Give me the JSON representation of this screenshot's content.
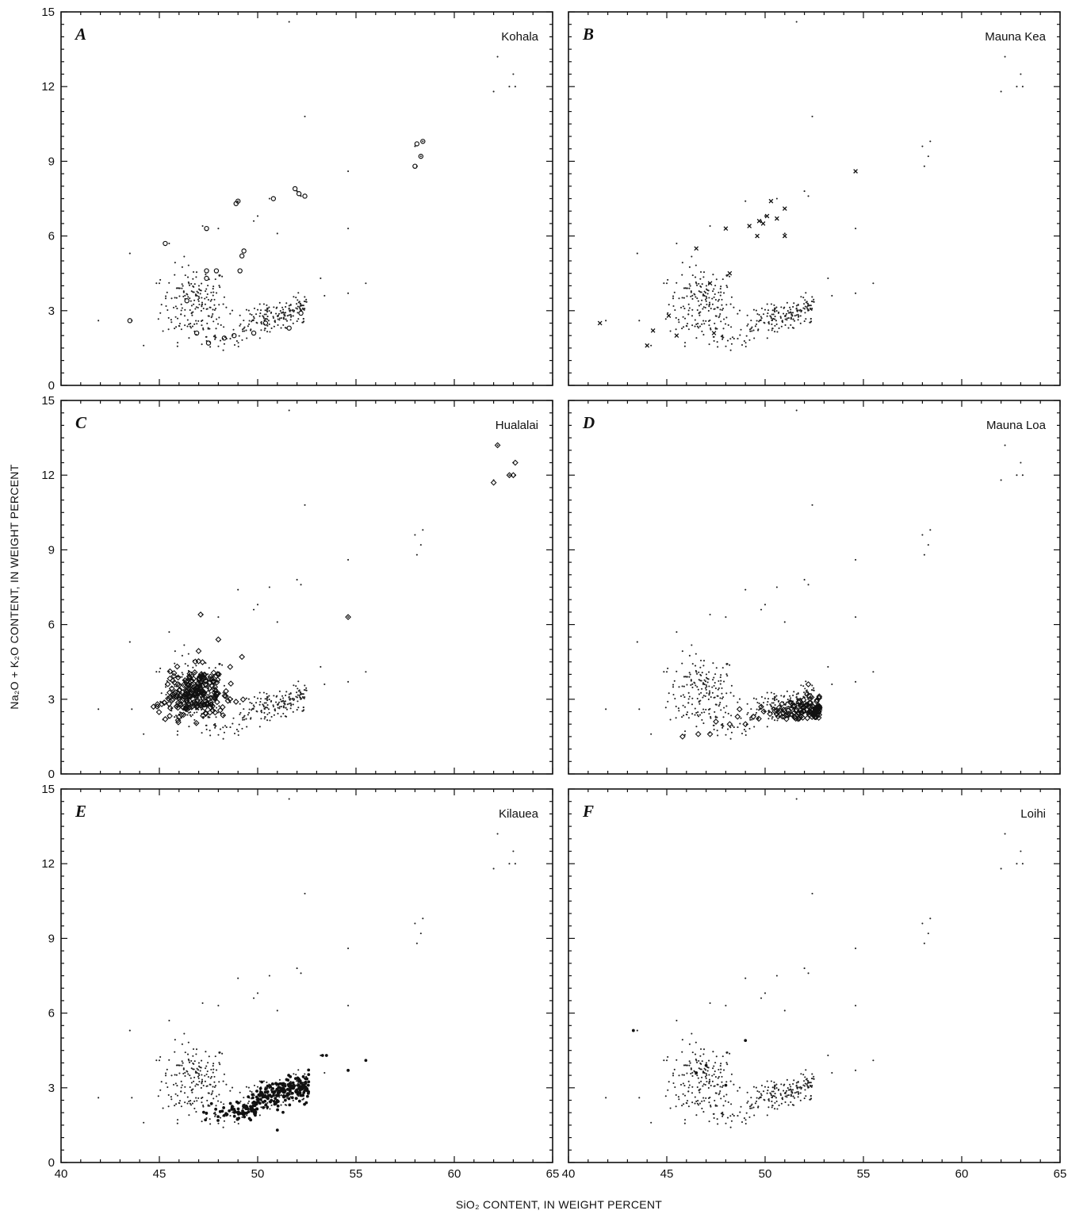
{
  "chart_data": {
    "type": "scatter",
    "xlabel": "SiO₂ CONTENT, IN WEIGHT PERCENT",
    "ylabel": "Na₂O + K₂O CONTENT, IN WEIGHT PERCENT",
    "xlim": [
      40,
      65
    ],
    "ylim": [
      0,
      15
    ],
    "x_ticks": [
      "40",
      "45",
      "50",
      "55",
      "60",
      "65"
    ],
    "y_ticks": [
      "0",
      "3",
      "6",
      "9",
      "12",
      "15"
    ],
    "grid": false,
    "background_field": {
      "description": "All Hawaiian volcano analyses shown as small dots in every panel",
      "clusters": [
        {
          "x_range": [
            44.5,
            49
          ],
          "y_range": [
            1.5,
            5.7
          ],
          "center": [
            46.8,
            3.3
          ]
        },
        {
          "x_range": [
            47,
            52.5
          ],
          "y_range": [
            1.3,
            3.9
          ],
          "center": [
            50.8,
            2.6
          ]
        }
      ],
      "trend_points": [
        {
          "x": 41.9,
          "y": 2.6
        },
        {
          "x": 43.5,
          "y": 5.3
        },
        {
          "x": 43.6,
          "y": 2.6
        },
        {
          "x": 44.2,
          "y": 1.6
        },
        {
          "x": 45.0,
          "y": 4.1
        },
        {
          "x": 45.5,
          "y": 5.7
        },
        {
          "x": 47.2,
          "y": 6.4
        },
        {
          "x": 48.0,
          "y": 6.3
        },
        {
          "x": 49.0,
          "y": 7.4
        },
        {
          "x": 49.8,
          "y": 6.6
        },
        {
          "x": 50.0,
          "y": 6.8
        },
        {
          "x": 50.6,
          "y": 7.5
        },
        {
          "x": 51.0,
          "y": 6.1
        },
        {
          "x": 51.6,
          "y": 14.6
        },
        {
          "x": 52.0,
          "y": 7.8
        },
        {
          "x": 52.4,
          "y": 10.8
        },
        {
          "x": 52.2,
          "y": 7.6
        },
        {
          "x": 53.2,
          "y": 4.3
        },
        {
          "x": 53.4,
          "y": 3.6
        },
        {
          "x": 54.6,
          "y": 8.6
        },
        {
          "x": 54.6,
          "y": 6.3
        },
        {
          "x": 54.6,
          "y": 3.7
        },
        {
          "x": 55.5,
          "y": 4.1
        },
        {
          "x": 58.0,
          "y": 9.6
        },
        {
          "x": 58.1,
          "y": 8.8
        },
        {
          "x": 58.3,
          "y": 9.2
        },
        {
          "x": 58.4,
          "y": 9.8
        },
        {
          "x": 62.0,
          "y": 11.8
        },
        {
          "x": 62.2,
          "y": 13.2
        },
        {
          "x": 62.8,
          "y": 12.0
        },
        {
          "x": 63.1,
          "y": 12.0
        },
        {
          "x": 63.0,
          "y": 12.5
        }
      ]
    },
    "panels": [
      {
        "letter": "A",
        "name": "Kohala",
        "marker": "circle",
        "highlight_points": [
          {
            "x": 43.5,
            "y": 2.6
          },
          {
            "x": 45.3,
            "y": 5.7
          },
          {
            "x": 46.4,
            "y": 3.4
          },
          {
            "x": 47.4,
            "y": 6.3
          },
          {
            "x": 47.4,
            "y": 4.6
          },
          {
            "x": 47.4,
            "y": 4.3
          },
          {
            "x": 47.9,
            "y": 4.6
          },
          {
            "x": 48.9,
            "y": 7.3
          },
          {
            "x": 49.0,
            "y": 7.4
          },
          {
            "x": 49.1,
            "y": 4.6
          },
          {
            "x": 49.2,
            "y": 5.2
          },
          {
            "x": 49.3,
            "y": 5.4
          },
          {
            "x": 50.8,
            "y": 7.5
          },
          {
            "x": 51.9,
            "y": 7.9
          },
          {
            "x": 52.1,
            "y": 7.7
          },
          {
            "x": 52.4,
            "y": 7.6
          },
          {
            "x": 58.0,
            "y": 8.8
          },
          {
            "x": 58.1,
            "y": 9.7
          },
          {
            "x": 58.3,
            "y": 9.2
          },
          {
            "x": 58.4,
            "y": 9.8
          },
          {
            "x": 47.5,
            "y": 1.7
          },
          {
            "x": 48.3,
            "y": 1.9
          },
          {
            "x": 48.8,
            "y": 2.0
          },
          {
            "x": 49.8,
            "y": 2.1
          },
          {
            "x": 50.4,
            "y": 2.5
          },
          {
            "x": 51.6,
            "y": 2.3
          },
          {
            "x": 52.2,
            "y": 2.9
          },
          {
            "x": 46.9,
            "y": 2.1
          }
        ]
      },
      {
        "letter": "B",
        "name": "Mauna Kea",
        "marker": "cross",
        "highlight_points": [
          {
            "x": 41.6,
            "y": 2.5
          },
          {
            "x": 44.0,
            "y": 1.6
          },
          {
            "x": 44.3,
            "y": 2.2
          },
          {
            "x": 45.1,
            "y": 2.8
          },
          {
            "x": 45.5,
            "y": 2.0
          },
          {
            "x": 46.5,
            "y": 5.5
          },
          {
            "x": 47.2,
            "y": 4.1
          },
          {
            "x": 47.4,
            "y": 2.1
          },
          {
            "x": 48.0,
            "y": 6.3
          },
          {
            "x": 48.2,
            "y": 4.5
          },
          {
            "x": 49.2,
            "y": 6.4
          },
          {
            "x": 49.6,
            "y": 6.0
          },
          {
            "x": 49.7,
            "y": 6.6
          },
          {
            "x": 49.9,
            "y": 6.5
          },
          {
            "x": 50.1,
            "y": 6.8
          },
          {
            "x": 50.3,
            "y": 7.4
          },
          {
            "x": 50.6,
            "y": 6.7
          },
          {
            "x": 51.0,
            "y": 7.1
          },
          {
            "x": 51.0,
            "y": 6.0
          },
          {
            "x": 54.6,
            "y": 8.6
          }
        ]
      },
      {
        "letter": "C",
        "name": "Hualalai",
        "marker": "diamond",
        "cluster": {
          "x_range": [
            44.5,
            49.5
          ],
          "y_range": [
            2.0,
            5.5
          ],
          "center": [
            46.8,
            3.2
          ],
          "count": 230
        },
        "highlight_points": [
          {
            "x": 47.1,
            "y": 6.4
          },
          {
            "x": 49.2,
            "y": 4.7
          },
          {
            "x": 48.6,
            "y": 4.3
          },
          {
            "x": 48.0,
            "y": 5.4
          },
          {
            "x": 44.7,
            "y": 2.7
          },
          {
            "x": 44.9,
            "y": 2.8
          },
          {
            "x": 45.3,
            "y": 2.2
          },
          {
            "x": 48.9,
            "y": 2.9
          },
          {
            "x": 54.6,
            "y": 6.3
          },
          {
            "x": 62.0,
            "y": 11.7
          },
          {
            "x": 62.2,
            "y": 13.2
          },
          {
            "x": 62.8,
            "y": 12.0
          },
          {
            "x": 63.0,
            "y": 12.0
          },
          {
            "x": 63.1,
            "y": 12.5
          }
        ]
      },
      {
        "letter": "D",
        "name": "Mauna Loa",
        "marker": "diamond",
        "cluster": {
          "x_range": [
            49.5,
            52.8
          ],
          "y_range": [
            2.2,
            3.3
          ],
          "center": [
            51.2,
            2.6
          ],
          "count": 120
        },
        "highlight_points": [
          {
            "x": 45.8,
            "y": 1.5
          },
          {
            "x": 46.6,
            "y": 1.6
          },
          {
            "x": 47.2,
            "y": 1.6
          },
          {
            "x": 47.5,
            "y": 2.1
          },
          {
            "x": 48.2,
            "y": 2.0
          },
          {
            "x": 48.6,
            "y": 2.3
          },
          {
            "x": 48.7,
            "y": 2.6
          },
          {
            "x": 49.0,
            "y": 2.0
          },
          {
            "x": 49.4,
            "y": 2.3
          },
          {
            "x": 49.8,
            "y": 2.7
          },
          {
            "x": 52.7,
            "y": 2.5
          },
          {
            "x": 52.2,
            "y": 3.6
          }
        ]
      },
      {
        "letter": "E",
        "name": "Kilauea",
        "marker": "dot",
        "cluster": {
          "x_range": [
            47.0,
            52.6
          ],
          "y_range": [
            1.6,
            3.9
          ],
          "center": [
            50.8,
            2.7
          ],
          "count": 260
        },
        "highlight_points": [
          {
            "x": 53.3,
            "y": 4.3
          },
          {
            "x": 53.5,
            "y": 4.3
          },
          {
            "x": 54.6,
            "y": 3.7
          },
          {
            "x": 55.5,
            "y": 4.1
          },
          {
            "x": 51.0,
            "y": 1.3
          }
        ]
      },
      {
        "letter": "F",
        "name": "Loihi",
        "marker": "dot",
        "highlight_points": [
          {
            "x": 43.3,
            "y": 5.3
          },
          {
            "x": 46.5,
            "y": 3.6
          },
          {
            "x": 47.0,
            "y": 3.9
          },
          {
            "x": 49.0,
            "y": 4.9
          },
          {
            "x": 48.0,
            "y": 3.1
          }
        ]
      }
    ]
  }
}
